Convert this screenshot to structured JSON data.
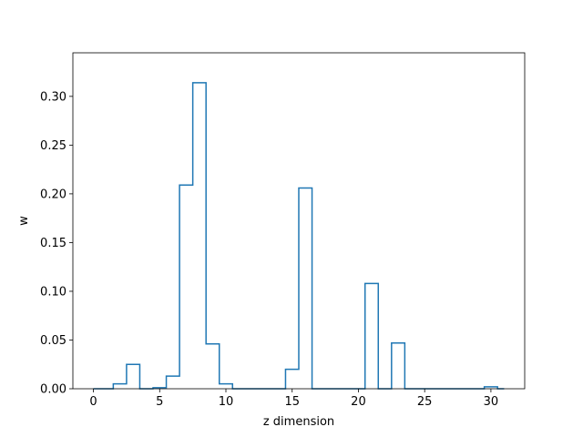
{
  "chart_data": {
    "type": "line",
    "drawstyle": "steps-mid",
    "title": "",
    "xlabel": "z dimension",
    "ylabel": "w",
    "xlim": [
      -1.55,
      32.55
    ],
    "ylim": [
      0,
      0.3447
    ],
    "xticks": [
      0,
      5,
      10,
      15,
      20,
      25,
      30
    ],
    "yticks": [
      0.0,
      0.05,
      0.1,
      0.15,
      0.2,
      0.25,
      0.3
    ],
    "ytick_labels": [
      "0.00",
      "0.05",
      "0.10",
      "0.15",
      "0.20",
      "0.25",
      "0.30"
    ],
    "line_color": "#1f77b4",
    "grid": false,
    "series": [
      {
        "x": [
          0,
          1,
          2,
          3,
          4,
          5,
          6,
          7,
          8,
          9,
          10,
          11,
          12,
          13,
          14,
          15,
          16,
          17,
          18,
          19,
          20,
          21,
          22,
          23,
          24,
          25,
          26,
          27,
          28,
          29,
          30,
          31
        ],
        "values": [
          0,
          0,
          0.005,
          0.025,
          0,
          0.001,
          0.013,
          0.209,
          0.314,
          0.046,
          0.005,
          0,
          0,
          0,
          0,
          0.02,
          0.206,
          0,
          0,
          0,
          0,
          0.108,
          0,
          0.047,
          0,
          0,
          0,
          0,
          0,
          0,
          0.002,
          0
        ]
      }
    ]
  }
}
